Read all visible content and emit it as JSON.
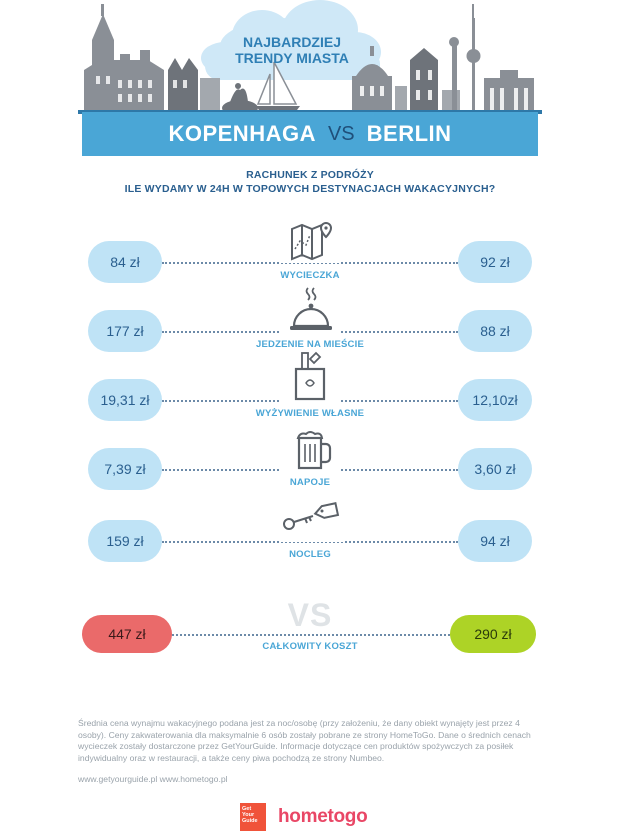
{
  "header": {
    "cloud_title_line1": "NAJBARDZIEJ",
    "cloud_title_line2": "TRENDY MIASTA",
    "city_left": "KOPENHAGA",
    "vs": "VS",
    "city_right": "BERLIN"
  },
  "subtitle": {
    "line1": "RACHUNEK Z PODRÓŻY",
    "line2": "ILE WYDAMY W 24H W TOPOWYCH DESTYNACJACH WAKACYJNYCH?"
  },
  "rows": [
    {
      "label": "WYCIECZKA",
      "left": "84 zł",
      "right": "92 zł",
      "icon": "map-icon"
    },
    {
      "label": "JEDZENIE NA MIEŚCIE",
      "left": "177 zł",
      "right": "88 zł",
      "icon": "cloche-icon"
    },
    {
      "label": "WYŻYWIENIE WŁASNE",
      "left": "19,31 zł",
      "right": "12,10zł",
      "icon": "grocery-bag-icon"
    },
    {
      "label": "NAPOJE",
      "left": "7,39 zł",
      "right": "3,60 zł",
      "icon": "beer-mug-icon"
    },
    {
      "label": "NOCLEG",
      "left": "159 zł",
      "right": "94 zł",
      "icon": "key-tag-icon"
    }
  ],
  "total": {
    "vs": "VS",
    "label": "CAŁKOWITY KOSZT",
    "left": "447 zł",
    "right": "290 zł"
  },
  "colors": {
    "accent_blue": "#4aa6d6",
    "pill_blue": "#bfe3f6",
    "total_left": "#ea6a6a",
    "total_right": "#add326"
  },
  "footnote": "Średnia cena wynajmu wakacyjnego podana jest za noc/osobę (przy założeniu, że dany obiekt wynajęty jest przez 4 osoby). Ceny zakwaterowania dla maksymalnie 6 osób zostały pobrane ze strony HomeToGo. Dane o średnich cenach wycieczek zostały dostarczone przez GetYourGuide. Informacje dotyczące cen produktów spożywczych za posiłek indywidualny oraz w restauracji, a także ceny piwa pochodzą ze strony Numbeo.",
  "links": "www.getyourguide.pl   www.hometogo.pl",
  "logos": {
    "gyg_line1": "Get",
    "gyg_line2": "Your",
    "gyg_line3": "Guide",
    "hometogo": "hometogo"
  }
}
